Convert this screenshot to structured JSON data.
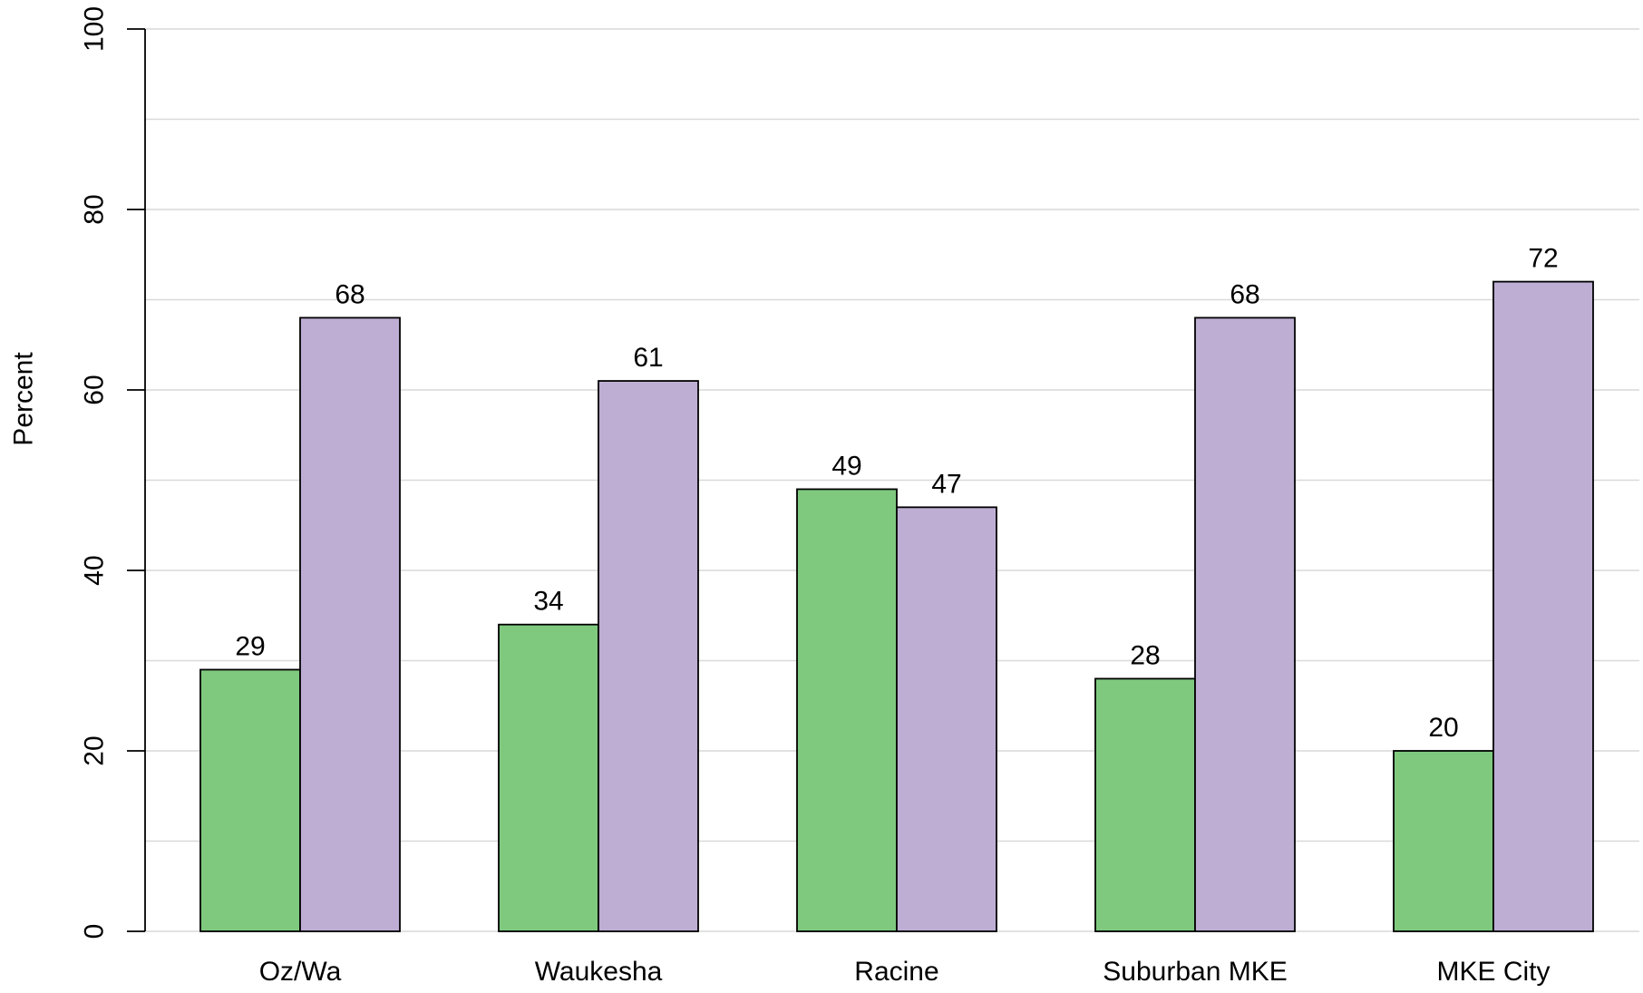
{
  "chart_data": {
    "type": "bar",
    "categories": [
      "Oz/Wa",
      "Waukesha",
      "Racine",
      "Suburban MKE",
      "MKE City"
    ],
    "series": [
      {
        "values": [
          29,
          34,
          49,
          28,
          20
        ],
        "color": "#7fc97f"
      },
      {
        "values": [
          68,
          61,
          47,
          68,
          72
        ],
        "color": "#beaed4"
      }
    ],
    "title": "",
    "xlabel": "",
    "ylabel": "Percent",
    "ylim": [
      0,
      100
    ],
    "yticks": [
      0,
      20,
      40,
      60,
      80,
      100
    ],
    "minor_gridlines_every": 10,
    "grid": true,
    "data_labels": true,
    "legend": "none"
  }
}
